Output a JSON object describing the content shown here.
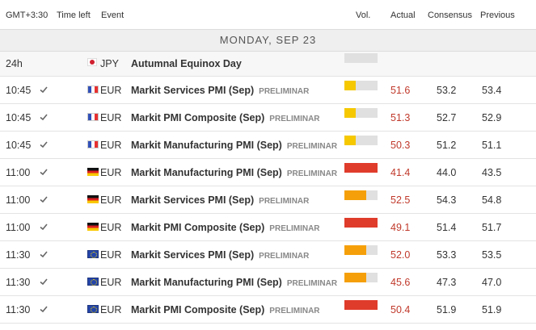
{
  "header": {
    "timezone": "GMT+3:30",
    "time_left": "Time left",
    "event": "Event",
    "vol": "Vol.",
    "actual": "Actual",
    "consensus": "Consensus",
    "previous": "Previous"
  },
  "date_label": "MONDAY, SEP 23",
  "colors": {
    "red": "#e03c2c",
    "orange": "#f5a00a",
    "yellow": "#f5c800",
    "actual_text": "#c0392b"
  },
  "rows": [
    {
      "time": "24h",
      "flag": "jp-flag-icon",
      "currency": "JPY",
      "event": "Autumnal Equinox Day",
      "tag": "",
      "vol_level": 0,
      "actual": "",
      "consensus": "",
      "previous": ""
    },
    {
      "time": "10:45",
      "flag": "fr-flag-icon",
      "currency": "EUR",
      "event": "Markit Services PMI (Sep)",
      "tag": "PRELIMINAR",
      "vol_level": 0.33,
      "actual": "51.6",
      "consensus": "53.2",
      "previous": "53.4"
    },
    {
      "time": "10:45",
      "flag": "fr-flag-icon",
      "currency": "EUR",
      "event": "Markit PMI Composite (Sep)",
      "tag": "PRELIMINAR",
      "vol_level": 0.33,
      "actual": "51.3",
      "consensus": "52.7",
      "previous": "52.9"
    },
    {
      "time": "10:45",
      "flag": "fr-flag-icon",
      "currency": "EUR",
      "event": "Markit Manufacturing PMI (Sep)",
      "tag": "PRELIMINAR",
      "vol_level": 0.33,
      "actual": "50.3",
      "consensus": "51.2",
      "previous": "51.1"
    },
    {
      "time": "11:00",
      "flag": "de-flag-icon",
      "currency": "EUR",
      "event": "Markit Manufacturing PMI (Sep)",
      "tag": "PRELIMINAR",
      "vol_level": 1.0,
      "actual": "41.4",
      "consensus": "44.0",
      "previous": "43.5"
    },
    {
      "time": "11:00",
      "flag": "de-flag-icon",
      "currency": "EUR",
      "event": "Markit Services PMI (Sep)",
      "tag": "PRELIMINAR",
      "vol_level": 0.66,
      "actual": "52.5",
      "consensus": "54.3",
      "previous": "54.8"
    },
    {
      "time": "11:00",
      "flag": "de-flag-icon",
      "currency": "EUR",
      "event": "Markit PMI Composite (Sep)",
      "tag": "PRELIMINAR",
      "vol_level": 1.0,
      "actual": "49.1",
      "consensus": "51.4",
      "previous": "51.7"
    },
    {
      "time": "11:30",
      "flag": "eu-flag-icon",
      "currency": "EUR",
      "event": "Markit Services PMI (Sep)",
      "tag": "PRELIMINAR",
      "vol_level": 0.66,
      "actual": "52.0",
      "consensus": "53.3",
      "previous": "53.5"
    },
    {
      "time": "11:30",
      "flag": "eu-flag-icon",
      "currency": "EUR",
      "event": "Markit Manufacturing PMI (Sep)",
      "tag": "PRELIMINAR",
      "vol_level": 0.66,
      "actual": "45.6",
      "consensus": "47.3",
      "previous": "47.0"
    },
    {
      "time": "11:30",
      "flag": "eu-flag-icon",
      "currency": "EUR",
      "event": "Markit PMI Composite (Sep)",
      "tag": "PRELIMINAR",
      "vol_level": 1.0,
      "actual": "50.4",
      "consensus": "51.9",
      "previous": "51.9"
    }
  ]
}
